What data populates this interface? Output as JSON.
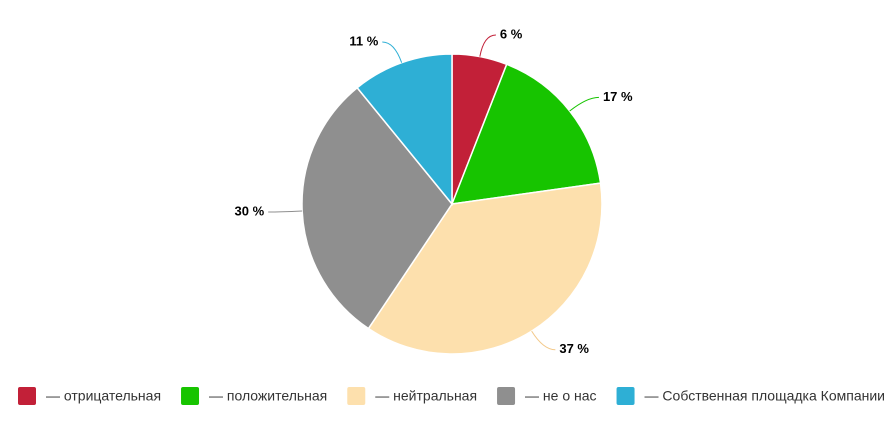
{
  "chart_data": {
    "type": "pie",
    "categories": [
      "— отрицательная",
      "— положительная",
      "— нейтральная",
      "— не о нас",
      "— Собственная площадка Компании"
    ],
    "values": [
      6,
      17,
      37,
      30,
      11
    ],
    "value_labels": [
      "6 %",
      "17 %",
      "37 %",
      "30 %",
      "11 %"
    ],
    "colors": [
      "#c22038",
      "#17c400",
      "#fde0ad",
      "#8f8f8f",
      "#2eafd5"
    ]
  }
}
